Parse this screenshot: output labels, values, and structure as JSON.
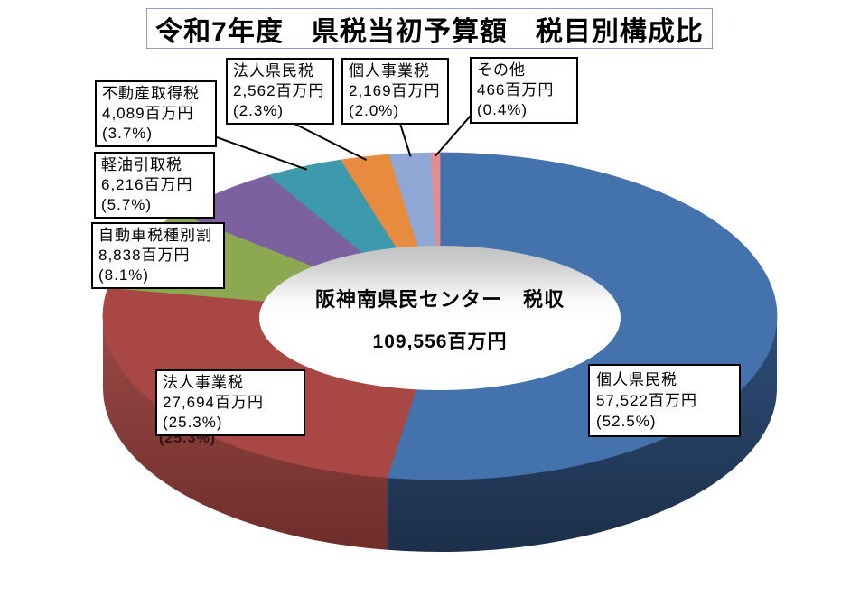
{
  "title": {
    "text": "令和7年度　県税当初予算額　税目別構成比"
  },
  "center_label": {
    "line1": "阪神南県民センター　税収",
    "line2": "109,556百万円"
  },
  "chart_data": {
    "type": "pie",
    "subtype": "3d-donut",
    "title": "令和7年度 県税当初予算額 税目別構成比",
    "center_text": [
      "阪神南県民センター　税収",
      "109,556百万円"
    ],
    "total_value": 109556,
    "total_label": "109,556百万円",
    "unit": "百万円",
    "start_angle_deg": 0,
    "direction": "clockwise",
    "legend_position": "callout-labels",
    "slices": [
      {
        "label": "個人県民税",
        "value": 57522,
        "value_label": "57,522百万円",
        "percent": 52.5,
        "percent_label": "(52.5%)",
        "color": "#4472ac",
        "side_top": "#2e4e78",
        "side_bottom": "#1c2f4a"
      },
      {
        "label": "法人事業税",
        "value": 27694,
        "value_label": "27,694百万円",
        "percent": 25.3,
        "percent_label": "(25.3%)",
        "color": "#a94744",
        "side_top": "#9a4a46",
        "side_bottom": "#6e2d2a"
      },
      {
        "label": "自動車税種別割",
        "value": 8838,
        "value_label": "8,838百万円",
        "percent": 8.1,
        "percent_label": "(8.1%)",
        "color": "#8ca851",
        "side_top": "#5f7436",
        "side_bottom": "#5f7436"
      },
      {
        "label": "軽油引取税",
        "value": 6216,
        "value_label": "6,216百万円",
        "percent": 5.7,
        "percent_label": "(5.7%)",
        "color": "#7c61a1",
        "side_top": "#554170",
        "side_bottom": "#554170"
      },
      {
        "label": "不動産取得税",
        "value": 4089,
        "value_label": "4,089百万円",
        "percent": 3.7,
        "percent_label": "(3.7%)",
        "color": "#3d9aac",
        "side_top": "#2a6b78",
        "side_bottom": "#2a6b78"
      },
      {
        "label": "法人県民税",
        "value": 2562,
        "value_label": "2,562百万円",
        "percent": 2.3,
        "percent_label": "(2.3%)",
        "color": "#e78b3e",
        "side_top": "#a8622b",
        "side_bottom": "#a8622b"
      },
      {
        "label": "個人事業税",
        "value": 2169,
        "value_label": "2,169百万円",
        "percent": 2.0,
        "percent_label": "(2.0%)",
        "color": "#8fa7d4",
        "side_top": "#64759a",
        "side_bottom": "#64759a"
      },
      {
        "label": "その他",
        "value": 466,
        "value_label": "466百万円",
        "percent": 0.4,
        "percent_label": "(0.4%)",
        "color": "#e28e90",
        "side_top": "#a86365",
        "side_bottom": "#a86365"
      }
    ],
    "hole_colors": {
      "rim": "#c2c2c2",
      "center": "#ffffff"
    }
  }
}
